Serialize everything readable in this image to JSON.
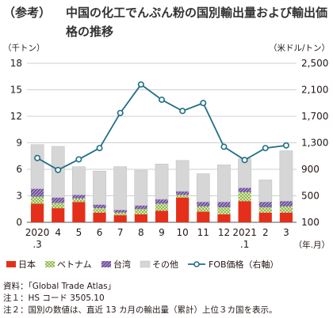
{
  "header": {
    "tag": "（参考）",
    "title": "中国の化工でんぷん粉の国別輸出量および輸出価格の推移"
  },
  "notes": [
    "資料：「Global Trade Atlas」",
    "注１：HS コード 3505.10",
    "注２：国別の数値は、直近 13 カ月の輸出量（累計）上位３カ国を表示。"
  ],
  "colors": {
    "japan": "#e4301a",
    "vietnam": "#8ab640",
    "taiwan": "#6e4f9c",
    "other": "#d6d6d6",
    "fob_line": "#1f6f86",
    "grid": "#bfbfbf"
  },
  "chart_data": {
    "type": "bar",
    "stacked": true,
    "left_unit": "（千トン）",
    "right_unit": "（米ドル/トン）",
    "x_unit": "（年.月）",
    "categories": [
      "2020.3",
      "4",
      "5",
      "6",
      "7",
      "8",
      "9",
      "10",
      "11",
      "12",
      "2021.1",
      "2",
      "3"
    ],
    "x_tick_lines": [
      [
        "2020",
        ".3"
      ],
      [
        "4"
      ],
      [
        "5"
      ],
      [
        "6"
      ],
      [
        "7"
      ],
      [
        "8"
      ],
      [
        "9"
      ],
      [
        "10"
      ],
      [
        "11"
      ],
      [
        "12"
      ],
      [
        "2021",
        ".1"
      ],
      [
        "2"
      ],
      [
        "3"
      ]
    ],
    "ylim": [
      0,
      18
    ],
    "yticks": [
      0,
      3,
      6,
      9,
      12,
      15,
      18
    ],
    "y2lim": [
      100,
      2500
    ],
    "y2ticks": [
      "100",
      "500",
      "900",
      "1,300",
      "1,700",
      "2,100",
      "2,500"
    ],
    "y2tick_values": [
      100,
      500,
      900,
      1300,
      1700,
      2100,
      2500
    ],
    "grid": true,
    "series": [
      {
        "name": "日本",
        "key": "japan",
        "values": [
          2.1,
          1.6,
          2.3,
          1.1,
          0.8,
          0.9,
          1.3,
          2.8,
          1.2,
          0.9,
          2.4,
          1.1,
          1.1
        ]
      },
      {
        "name": "ベトナム",
        "key": "vietnam",
        "values": [
          0.8,
          0.6,
          0.4,
          0.5,
          0.3,
          0.6,
          0.8,
          0.3,
          0.6,
          0.8,
          1.0,
          0.6,
          0.7
        ]
      },
      {
        "name": "台湾",
        "key": "taiwan",
        "values": [
          0.9,
          0.6,
          0.4,
          0.4,
          0.3,
          0.4,
          0.5,
          0.4,
          0.5,
          0.6,
          0.5,
          0.6,
          0.6
        ]
      },
      {
        "name": "その他",
        "key": "other",
        "values": [
          5.0,
          5.8,
          3.2,
          3.8,
          4.9,
          4.0,
          4.0,
          3.5,
          3.2,
          4.2,
          3.3,
          2.5,
          5.7
        ]
      }
    ],
    "line_series": {
      "name": "FOB価格（右軸）",
      "values": [
        1070,
        890,
        1050,
        1220,
        1750,
        2180,
        1950,
        1780,
        1900,
        1240,
        1040,
        1220,
        1260
      ]
    },
    "legend": "bottom"
  }
}
